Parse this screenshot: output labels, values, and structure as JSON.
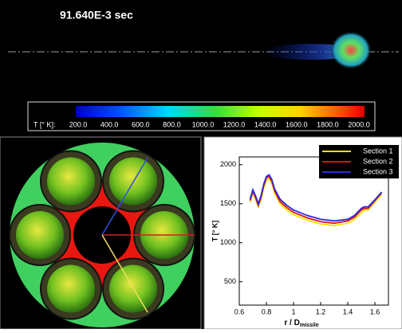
{
  "time_label": "91.640E-3 sec",
  "colorbar": {
    "label": "T [° K]:",
    "ticks": [
      "200.0",
      "400.0",
      "600.0",
      "800.0",
      "1000.0",
      "1200.0",
      "1400.0",
      "1600.0",
      "1800.0",
      "2000.0"
    ]
  },
  "chart_data": {
    "type": "line",
    "ylabel": "T [° K]",
    "xlabel": "r / D",
    "xlabel_sub": "missile",
    "x": [
      0.68,
      0.7,
      0.72,
      0.74,
      0.76,
      0.78,
      0.8,
      0.82,
      0.84,
      0.86,
      0.9,
      0.95,
      1.0,
      1.1,
      1.2,
      1.3,
      1.4,
      1.45,
      1.5,
      1.52,
      1.55,
      1.6,
      1.65
    ],
    "series": [
      {
        "name": "Section 1",
        "color": "#f2e400",
        "values": [
          1520,
          1640,
          1560,
          1460,
          1550,
          1700,
          1800,
          1820,
          1760,
          1640,
          1500,
          1420,
          1360,
          1290,
          1240,
          1220,
          1250,
          1300,
          1380,
          1420,
          1420,
          1520,
          1620
        ]
      },
      {
        "name": "Section 2",
        "color": "#e01010",
        "values": [
          1540,
          1660,
          1580,
          1480,
          1580,
          1730,
          1830,
          1850,
          1790,
          1670,
          1530,
          1450,
          1390,
          1320,
          1270,
          1250,
          1280,
          1330,
          1420,
          1440,
          1440,
          1540,
          1640
        ]
      },
      {
        "name": "Section 3",
        "color": "#2a2ae0",
        "values": [
          1560,
          1680,
          1600,
          1500,
          1600,
          1750,
          1850,
          1870,
          1810,
          1690,
          1560,
          1480,
          1420,
          1350,
          1300,
          1280,
          1300,
          1350,
          1440,
          1460,
          1460,
          1550,
          1650
        ]
      }
    ],
    "xlim": [
      0.6,
      1.7
    ],
    "ylim": [
      200,
      2100
    ],
    "xticks": [
      0.6,
      0.8,
      1,
      1.2,
      1.4,
      1.6
    ],
    "yticks": [
      500,
      1000,
      1500,
      2000
    ],
    "legend": "upper right"
  }
}
